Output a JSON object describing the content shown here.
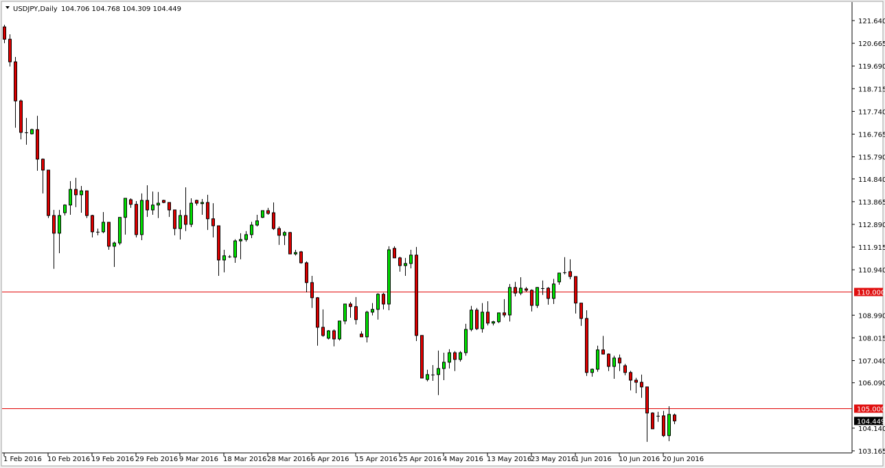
{
  "header": {
    "symbol": "USDJPY,Daily",
    "ohlc": "104.706 104.768 104.309 104.449",
    "menu_icon": "triangle-down-icon"
  },
  "colors": {
    "bull": "#00dd00",
    "bear": "#dd0000",
    "wick": "#000000",
    "level_line": "#e00000",
    "level_label_bg": "#e01010",
    "price_label_bg": "#000000"
  },
  "chart_data": {
    "type": "candlestick",
    "ylim": [
      103.165,
      121.64
    ],
    "grid": false,
    "y_ticks": [
      "121.640",
      "120.665",
      "119.690",
      "118.715",
      "117.740",
      "116.765",
      "115.790",
      "114.840",
      "113.865",
      "112.890",
      "111.915",
      "110.940",
      "108.990",
      "108.015",
      "107.040",
      "106.090",
      "104.140",
      "103.165"
    ],
    "x_labels": [
      {
        "index": 0,
        "text": "1 Feb 2016"
      },
      {
        "index": 8,
        "text": "10 Feb 2016"
      },
      {
        "index": 16,
        "text": "19 Feb 2016"
      },
      {
        "index": 24,
        "text": "29 Feb 2016"
      },
      {
        "index": 32,
        "text": "9 Mar 2016"
      },
      {
        "index": 40,
        "text": "18 Mar 2016"
      },
      {
        "index": 48,
        "text": "28 Mar 2016"
      },
      {
        "index": 56,
        "text": "6 Apr 2016"
      },
      {
        "index": 64,
        "text": "15 Apr 2016"
      },
      {
        "index": 72,
        "text": "25 Apr 2016"
      },
      {
        "index": 80,
        "text": "4 May 2016"
      },
      {
        "index": 88,
        "text": "13 May 2016"
      },
      {
        "index": 96,
        "text": "23 May 2016"
      },
      {
        "index": 104,
        "text": "1 Jun 2016"
      },
      {
        "index": 112,
        "text": "10 Jun 2016"
      },
      {
        "index": 120,
        "text": "20 Jun 2016"
      }
    ],
    "levels": [
      {
        "value": 110.0,
        "label": "110.000"
      },
      {
        "value": 105.0,
        "label": "105.000"
      }
    ],
    "last_price": {
      "value": 104.449,
      "label": "104.449"
    },
    "candles_ohlc": [
      [
        121.37,
        121.46,
        120.67,
        120.84
      ],
      [
        120.84,
        121.05,
        119.67,
        119.87
      ],
      [
        119.87,
        120.08,
        117.04,
        118.19
      ],
      [
        118.19,
        118.25,
        116.54,
        116.84
      ],
      [
        116.84,
        117.46,
        116.31,
        116.84
      ],
      [
        116.78,
        117.0,
        116.75,
        116.96
      ],
      [
        116.96,
        117.55,
        115.19,
        115.69
      ],
      [
        115.69,
        115.72,
        114.22,
        115.22
      ],
      [
        115.22,
        115.22,
        113.16,
        113.27
      ],
      [
        113.27,
        113.51,
        110.98,
        112.51
      ],
      [
        112.51,
        113.51,
        111.65,
        113.27
      ],
      [
        113.39,
        113.75,
        113.27,
        113.72
      ],
      [
        113.72,
        114.75,
        113.3,
        114.39
      ],
      [
        114.39,
        114.89,
        113.63,
        114.16
      ],
      [
        114.16,
        114.54,
        113.39,
        114.33
      ],
      [
        114.33,
        114.33,
        113.16,
        113.27
      ],
      [
        113.27,
        113.3,
        112.33,
        112.57
      ],
      [
        112.57,
        112.71,
        112.42,
        112.57
      ],
      [
        112.57,
        113.42,
        112.51,
        112.98
      ],
      [
        112.98,
        112.98,
        111.8,
        111.95
      ],
      [
        111.95,
        112.15,
        111.06,
        112.09
      ],
      [
        112.09,
        113.19,
        112.0,
        113.19
      ],
      [
        113.19,
        114.01,
        112.45,
        114.01
      ],
      [
        113.95,
        114.01,
        113.6,
        113.75
      ],
      [
        113.75,
        113.89,
        112.33,
        112.45
      ],
      [
        112.45,
        114.22,
        112.21,
        113.92
      ],
      [
        113.92,
        114.57,
        113.21,
        113.51
      ],
      [
        113.51,
        114.3,
        113.3,
        113.72
      ],
      [
        113.72,
        114.28,
        113.16,
        113.8
      ],
      [
        113.92,
        113.95,
        113.8,
        113.83
      ],
      [
        113.83,
        113.83,
        113.21,
        113.51
      ],
      [
        113.51,
        113.51,
        112.42,
        112.71
      ],
      [
        112.71,
        113.51,
        112.24,
        113.27
      ],
      [
        113.27,
        114.48,
        112.6,
        112.89
      ],
      [
        112.89,
        114.01,
        112.77,
        113.8
      ],
      [
        113.92,
        113.95,
        113.7,
        113.8
      ],
      [
        113.78,
        113.98,
        113.3,
        113.83
      ],
      [
        113.83,
        114.16,
        112.65,
        113.13
      ],
      [
        113.13,
        113.8,
        112.33,
        112.83
      ],
      [
        112.83,
        112.83,
        110.68,
        111.36
      ],
      [
        111.36,
        111.8,
        110.83,
        111.54
      ],
      [
        111.51,
        111.57,
        111.45,
        111.48
      ],
      [
        111.48,
        112.25,
        111.24,
        112.18
      ],
      [
        112.18,
        112.51,
        111.39,
        112.24
      ],
      [
        112.24,
        112.6,
        112.15,
        112.45
      ],
      [
        112.45,
        113.0,
        112.3,
        112.86
      ],
      [
        112.86,
        113.3,
        112.8,
        113.04
      ],
      [
        113.19,
        113.48,
        113.16,
        113.48
      ],
      [
        113.48,
        113.6,
        113.3,
        113.36
      ],
      [
        113.39,
        113.83,
        112.65,
        112.71
      ],
      [
        112.71,
        112.8,
        112.01,
        112.42
      ],
      [
        112.42,
        112.6,
        112.0,
        112.54
      ],
      [
        112.54,
        112.57,
        111.62,
        111.62
      ],
      [
        111.62,
        111.8,
        111.55,
        111.68
      ],
      [
        111.71,
        111.75,
        111.2,
        111.24
      ],
      [
        111.24,
        111.3,
        109.97,
        110.39
      ],
      [
        110.39,
        110.68,
        109.3,
        109.74
      ],
      [
        109.74,
        109.77,
        107.68,
        108.47
      ],
      [
        108.47,
        109.24,
        108.06,
        108.12
      ],
      [
        108.0,
        108.35,
        107.95,
        108.32
      ],
      [
        108.32,
        108.38,
        107.65,
        107.97
      ],
      [
        107.97,
        108.74,
        107.9,
        108.74
      ],
      [
        108.74,
        109.47,
        108.6,
        109.47
      ],
      [
        109.47,
        109.56,
        108.88,
        109.36
      ],
      [
        109.36,
        109.77,
        108.59,
        108.8
      ],
      [
        108.18,
        108.3,
        108.06,
        108.06
      ],
      [
        108.06,
        109.18,
        107.82,
        109.12
      ],
      [
        109.12,
        109.51,
        108.98,
        109.24
      ],
      [
        109.24,
        109.94,
        108.8,
        109.89
      ],
      [
        109.89,
        109.95,
        109.24,
        109.47
      ],
      [
        109.47,
        111.95,
        109.2,
        111.8
      ],
      [
        111.86,
        111.95,
        111.45,
        111.45
      ],
      [
        111.45,
        111.5,
        110.86,
        111.12
      ],
      [
        111.12,
        111.45,
        110.68,
        111.21
      ],
      [
        111.21,
        111.8,
        111.0,
        111.57
      ],
      [
        111.57,
        111.92,
        107.88,
        108.12
      ],
      [
        108.12,
        108.12,
        106.29,
        106.29
      ],
      [
        106.23,
        106.65,
        106.15,
        106.44
      ],
      [
        106.44,
        106.85,
        106.17,
        106.44
      ],
      [
        106.44,
        107.47,
        105.56,
        106.7
      ],
      [
        106.7,
        107.38,
        106.2,
        106.97
      ],
      [
        106.97,
        107.53,
        106.7,
        107.38
      ],
      [
        107.38,
        107.45,
        106.59,
        107.09
      ],
      [
        107.09,
        107.45,
        107.0,
        107.38
      ],
      [
        107.38,
        108.62,
        107.25,
        108.38
      ],
      [
        108.38,
        109.39,
        108.3,
        109.21
      ],
      [
        109.21,
        109.3,
        108.35,
        108.41
      ],
      [
        108.41,
        109.51,
        108.24,
        109.12
      ],
      [
        109.12,
        109.59,
        108.55,
        108.65
      ],
      [
        108.65,
        108.75,
        108.55,
        108.71
      ],
      [
        108.71,
        109.1,
        108.65,
        109.09
      ],
      [
        109.09,
        109.68,
        108.9,
        109.0
      ],
      [
        109.0,
        110.33,
        108.72,
        110.18
      ],
      [
        110.18,
        110.42,
        109.8,
        109.94
      ],
      [
        109.94,
        110.62,
        109.85,
        110.15
      ],
      [
        110.12,
        110.2,
        110.0,
        110.06
      ],
      [
        110.06,
        110.1,
        109.15,
        109.41
      ],
      [
        109.41,
        110.2,
        109.3,
        110.18
      ],
      [
        110.15,
        110.48,
        109.86,
        110.15
      ],
      [
        110.15,
        110.2,
        109.44,
        109.71
      ],
      [
        109.71,
        110.55,
        109.47,
        110.33
      ],
      [
        110.42,
        110.8,
        110.3,
        110.8
      ],
      [
        110.8,
        111.48,
        110.74,
        110.83
      ],
      [
        110.86,
        111.39,
        110.53,
        110.65
      ],
      [
        110.65,
        110.65,
        109.06,
        109.51
      ],
      [
        109.51,
        109.51,
        108.53,
        108.85
      ],
      [
        108.85,
        109.2,
        106.38,
        106.53
      ],
      [
        106.53,
        106.7,
        106.35,
        106.67
      ],
      [
        106.67,
        107.68,
        106.56,
        107.5
      ],
      [
        107.5,
        108.1,
        107.3,
        107.32
      ],
      [
        107.32,
        107.35,
        106.59,
        106.79
      ],
      [
        106.79,
        107.25,
        106.26,
        107.15
      ],
      [
        107.15,
        107.3,
        106.59,
        106.94
      ],
      [
        106.82,
        106.9,
        106.41,
        106.53
      ],
      [
        106.53,
        106.6,
        105.76,
        106.2
      ],
      [
        106.2,
        106.3,
        105.64,
        106.11
      ],
      [
        106.11,
        106.44,
        105.44,
        105.91
      ],
      [
        105.91,
        105.91,
        103.55,
        104.79
      ],
      [
        104.79,
        104.82,
        104.11,
        104.11
      ],
      [
        104.67,
        104.84,
        104.41,
        104.67
      ],
      [
        104.67,
        104.88,
        103.76,
        103.82
      ],
      [
        103.82,
        105.08,
        103.58,
        104.73
      ],
      [
        104.706,
        104.768,
        104.309,
        104.449
      ]
    ]
  }
}
